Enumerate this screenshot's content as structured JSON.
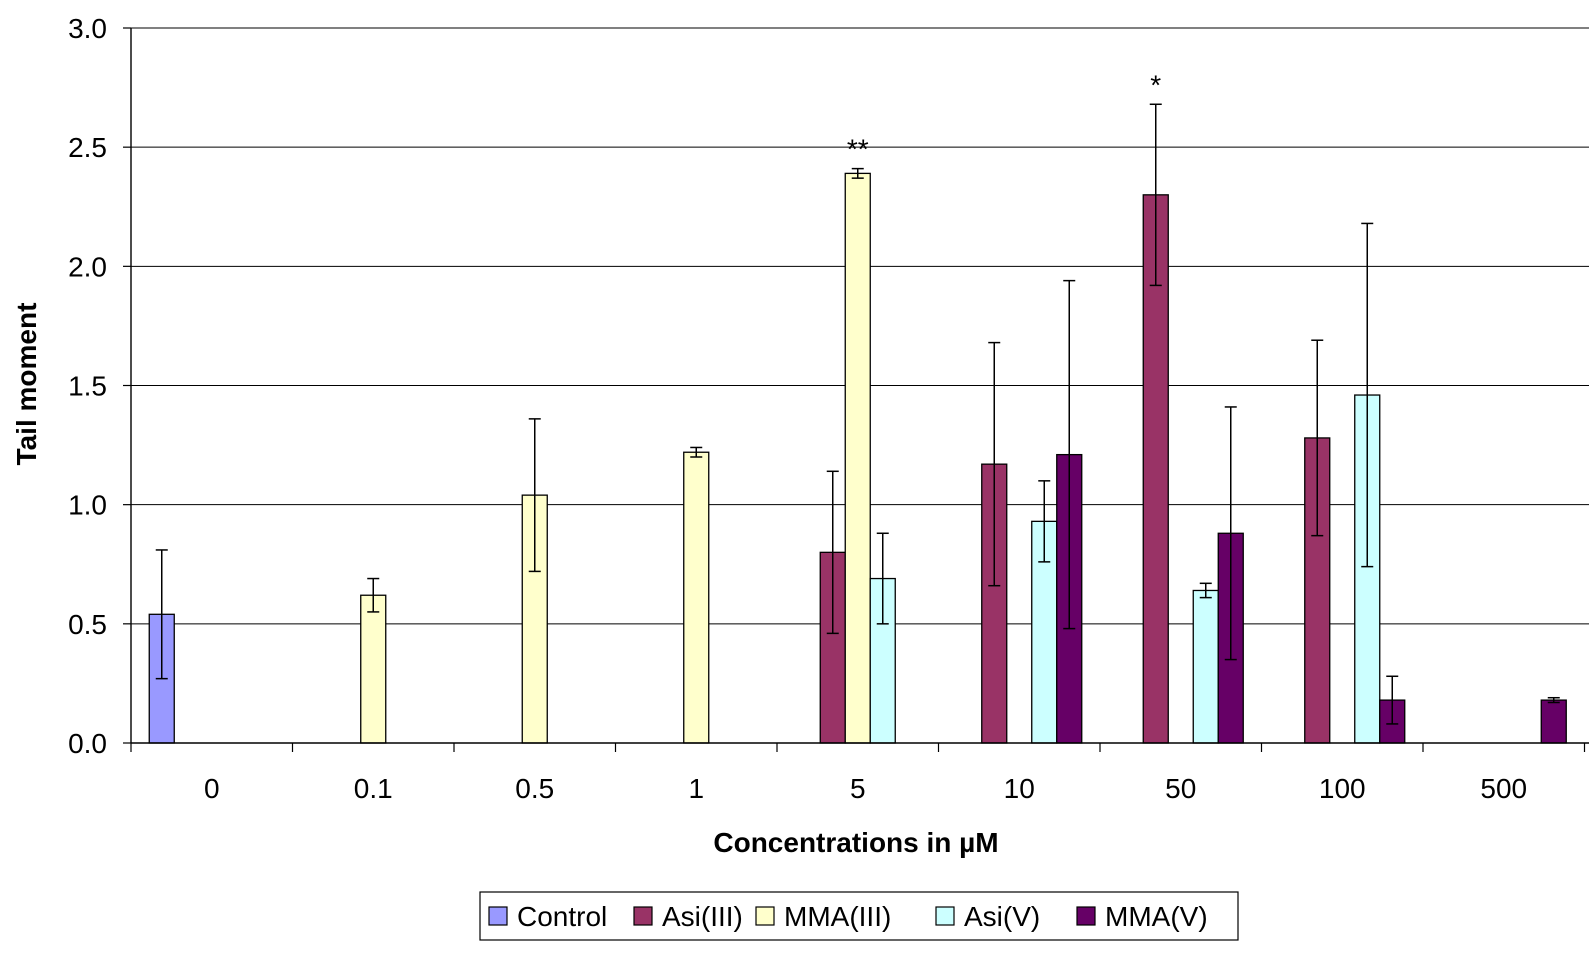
{
  "chart_data": {
    "type": "bar",
    "title": "",
    "xlabel": "Concentrations in µM",
    "ylabel": "Tail moment",
    "ylim": [
      0,
      3.0
    ],
    "yticks": [
      "0.0",
      "0.5",
      "1.0",
      "1.5",
      "2.0",
      "2.5",
      "3.0"
    ],
    "grid": "horizontal",
    "legend_position": "bottom",
    "categories": [
      "0",
      "0.1",
      "0.5",
      "1",
      "5",
      "10",
      "50",
      "100",
      "500"
    ],
    "series": [
      {
        "name": "Control",
        "color": "#9999ff",
        "values": [
          0.54,
          null,
          null,
          null,
          null,
          null,
          null,
          null,
          null
        ],
        "errors": [
          0.27,
          null,
          null,
          null,
          null,
          null,
          null,
          null,
          null
        ]
      },
      {
        "name": "Asi(III)",
        "color": "#993366",
        "values": [
          null,
          null,
          null,
          null,
          0.8,
          1.17,
          2.3,
          1.28,
          null
        ],
        "errors": [
          null,
          null,
          null,
          null,
          0.34,
          0.51,
          0.38,
          0.41,
          null
        ]
      },
      {
        "name": "MMA(III)",
        "color": "#ffffcc",
        "values": [
          null,
          0.62,
          1.04,
          1.22,
          2.39,
          null,
          null,
          null,
          null
        ],
        "errors": [
          null,
          0.07,
          0.32,
          0.02,
          0.02,
          null,
          null,
          null,
          null
        ]
      },
      {
        "name": "Asi(V)",
        "color": "#ccffff",
        "values": [
          null,
          null,
          null,
          null,
          0.69,
          0.93,
          0.64,
          1.46,
          null
        ],
        "errors": [
          null,
          null,
          null,
          null,
          0.19,
          0.17,
          0.03,
          0.72,
          null
        ]
      },
      {
        "name": "MMA(V)",
        "color": "#660066",
        "values": [
          null,
          null,
          null,
          null,
          null,
          1.21,
          0.88,
          0.18,
          0.18
        ],
        "errors": [
          null,
          null,
          null,
          null,
          null,
          0.73,
          0.53,
          0.1,
          0.01
        ]
      }
    ],
    "annotations": [
      {
        "text": "**",
        "category": "5",
        "series": "MMA(III)"
      },
      {
        "text": "*",
        "category": "50",
        "series": "Asi(III)"
      }
    ]
  }
}
